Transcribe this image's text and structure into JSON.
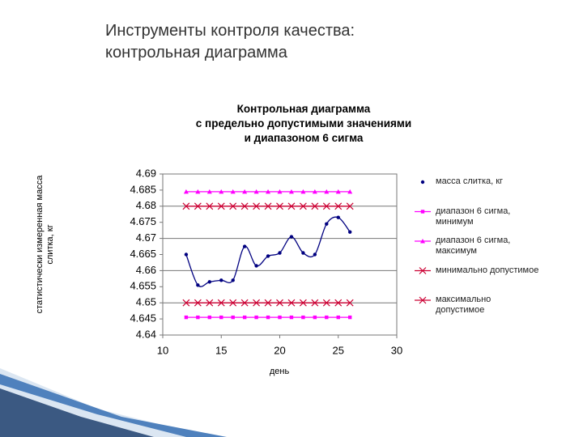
{
  "slide_title": "Инструменты контроля качества:\nконтрольная диаграмма",
  "chart_data": {
    "type": "line",
    "title": "Контрольная диаграмма\nс предельно допустимыми значениями\nи диапазоном 6 сигма",
    "x_label": "день",
    "y_label": "статистически измеренная масса\nслитка, кг",
    "x": [
      12,
      13,
      14,
      15,
      16,
      17,
      18,
      19,
      20,
      21,
      22,
      23,
      24,
      25,
      26
    ],
    "xlim": [
      10,
      30
    ],
    "xticks": [
      10,
      15,
      20,
      25,
      30
    ],
    "ylim": [
      4.64,
      4.69
    ],
    "yticks": [
      4.69,
      4.685,
      4.68,
      4.675,
      4.67,
      4.665,
      4.66,
      4.655,
      4.65,
      4.645,
      4.64
    ],
    "grid": true,
    "legend": "right",
    "series": [
      {
        "name": "масса слитка, кг",
        "color": "#000080",
        "marker": "circle",
        "smooth": true,
        "values": [
          4.665,
          4.6555,
          4.6565,
          4.657,
          4.657,
          4.6675,
          4.6615,
          4.6645,
          4.6655,
          4.6705,
          4.6655,
          4.665,
          4.6745,
          4.6765,
          4.672
        ]
      },
      {
        "name": "диапазон 6 сигма, минимум",
        "color": "#ff00ff",
        "marker": "square",
        "values": [
          4.6455,
          4.6455,
          4.6455,
          4.6455,
          4.6455,
          4.6455,
          4.6455,
          4.6455,
          4.6455,
          4.6455,
          4.6455,
          4.6455,
          4.6455,
          4.6455,
          4.6455
        ]
      },
      {
        "name": "диапазон 6 сигма, максимум",
        "color": "#ff00ff",
        "marker": "triangle",
        "values": [
          4.6845,
          4.6845,
          4.6845,
          4.6845,
          4.6845,
          4.6845,
          4.6845,
          4.6845,
          4.6845,
          4.6845,
          4.6845,
          4.6845,
          4.6845,
          4.6845,
          4.6845
        ]
      },
      {
        "name": "минимально допустимое",
        "color": "#cc0033",
        "marker": "x",
        "values": [
          4.65,
          4.65,
          4.65,
          4.65,
          4.65,
          4.65,
          4.65,
          4.65,
          4.65,
          4.65,
          4.65,
          4.65,
          4.65,
          4.65,
          4.65
        ]
      },
      {
        "name": "максимально допустимое",
        "color": "#cc0033",
        "marker": "x",
        "values": [
          4.68,
          4.68,
          4.68,
          4.68,
          4.68,
          4.68,
          4.68,
          4.68,
          4.68,
          4.68,
          4.68,
          4.68,
          4.68,
          4.68,
          4.68
        ]
      }
    ]
  }
}
